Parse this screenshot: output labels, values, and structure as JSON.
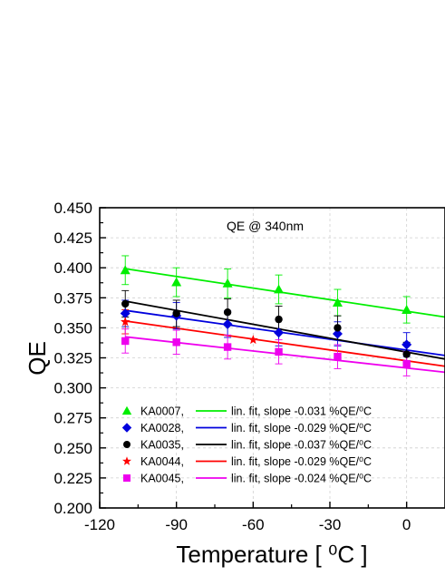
{
  "chart_data": {
    "type": "scatter",
    "title": "",
    "annotation": "QE @ 340nm",
    "xlabel": "Temperature [ ⁰C ]",
    "ylabel": "QE",
    "xlim": [
      -120,
      15
    ],
    "ylim": [
      0.2,
      0.45
    ],
    "xticks": [
      -120,
      -90,
      -60,
      -30,
      0
    ],
    "yticks": [
      0.2,
      0.225,
      0.25,
      0.275,
      0.3,
      0.325,
      0.35,
      0.375,
      0.4,
      0.425,
      0.45
    ],
    "xtick_labels": [
      "-120",
      "-90",
      "-60",
      "-30",
      "0"
    ],
    "ytick_labels": [
      "0.200",
      "0.225",
      "0.250",
      "0.275",
      "0.300",
      "0.325",
      "0.350",
      "0.375",
      "0.400",
      "0.425",
      "0.450"
    ],
    "grid": true,
    "legend_position": "bottom-left",
    "series": [
      {
        "name": "KA0007,",
        "fit_label": "lin. fit, slope -0.031 %QE/⁰C",
        "color": "#00ee00",
        "marker": "triangle",
        "x": [
          -110,
          -90,
          -70,
          -50,
          -27,
          0
        ],
        "y": [
          0.398,
          0.388,
          0.387,
          0.382,
          0.371,
          0.365
        ],
        "err": [
          0.012,
          0.012,
          0.012,
          0.012,
          0.011,
          0.011
        ],
        "fit": [
          0.3992,
          0.359
        ]
      },
      {
        "name": "KA0028,",
        "fit_label": "lin. fit, slope -0.029 %QE/⁰C",
        "color": "#0000dd",
        "marker": "diamond",
        "x": [
          -110,
          -90,
          -70,
          -50,
          -27,
          0
        ],
        "y": [
          0.362,
          0.36,
          0.353,
          0.346,
          0.345,
          0.336
        ],
        "err": [
          0.011,
          0.011,
          0.011,
          0.011,
          0.01,
          0.01
        ],
        "fit": [
          0.3645,
          0.327
        ]
      },
      {
        "name": "KA0035,",
        "fit_label": "lin. fit, slope -0.037 %QE/⁰C",
        "color": "#000000",
        "marker": "circle",
        "x": [
          -110,
          -90,
          -70,
          -50,
          -27,
          0
        ],
        "y": [
          0.37,
          0.362,
          0.363,
          0.357,
          0.35,
          0.328
        ],
        "err": [
          0.011,
          0.011,
          0.011,
          0.011,
          0.01,
          0.01
        ],
        "fit": [
          0.3722,
          0.324
        ]
      },
      {
        "name": "KA0044,",
        "fit_label": "lin. fit, slope -0.029 %QE/⁰C",
        "color": "#ff0000",
        "marker": "star",
        "x": [
          -110,
          -60
        ],
        "y": [
          0.355,
          0.34
        ],
        "err": [
          0.01,
          0.0
        ],
        "fit": [
          0.3557,
          0.318
        ]
      },
      {
        "name": "KA0045,",
        "fit_label": "lin. fit, slope -0.024 %QE/⁰C",
        "color": "#ee00ee",
        "marker": "square",
        "x": [
          -110,
          -90,
          -70,
          -50,
          -27,
          0
        ],
        "y": [
          0.339,
          0.338,
          0.334,
          0.33,
          0.326,
          0.32
        ],
        "err": [
          0.01,
          0.01,
          0.01,
          0.01,
          0.01,
          0.01
        ],
        "fit": [
          0.3425,
          0.313
        ]
      }
    ]
  }
}
